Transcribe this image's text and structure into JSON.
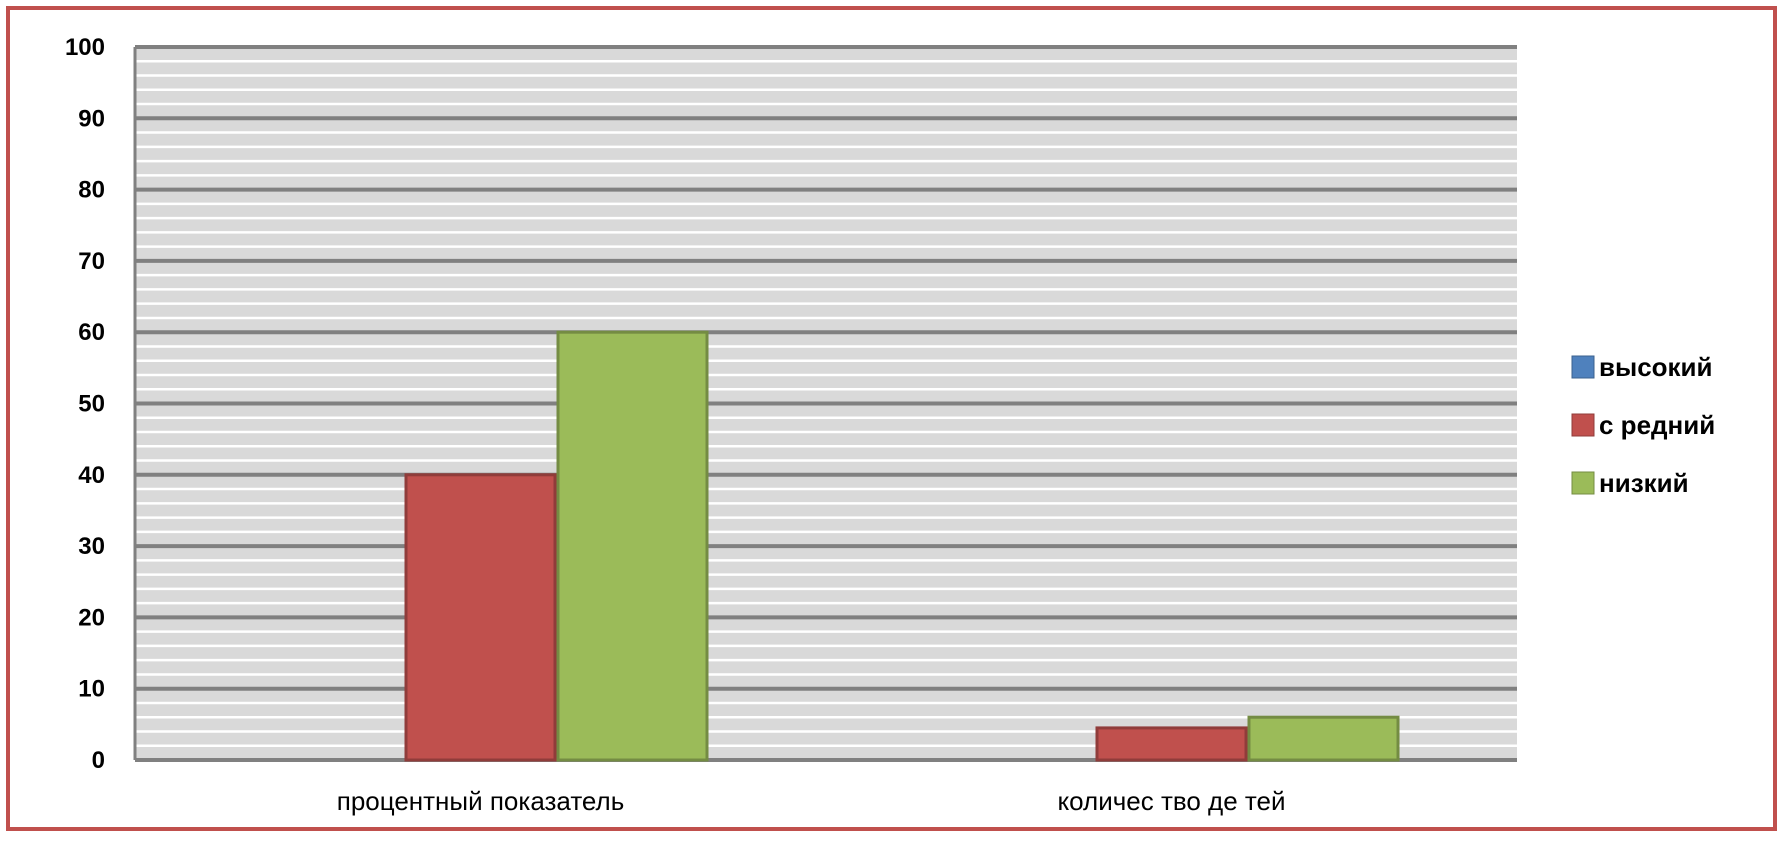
{
  "chart_data": {
    "type": "bar",
    "categories": [
      "процентный показатель",
      "количес тво де тей"
    ],
    "series": [
      {
        "name": "высокий",
        "values": [
          0,
          0
        ],
        "color": "#4f81bd"
      },
      {
        "name": "с редний",
        "values": [
          40,
          4.5
        ],
        "color": "#c0504d"
      },
      {
        "name": "низкий",
        "values": [
          60,
          6
        ],
        "color": "#9bbb59"
      }
    ],
    "ylim": [
      0,
      100
    ],
    "yticks": [
      0,
      10,
      20,
      30,
      40,
      50,
      60,
      70,
      80,
      90,
      100
    ],
    "grid": true,
    "minor_grid": true,
    "legend": "right",
    "colors": {
      "border": "#c0504d",
      "plot_background": "#d9d9d9",
      "major_grid": "#808080",
      "minor_grid": "#ffffff"
    }
  }
}
